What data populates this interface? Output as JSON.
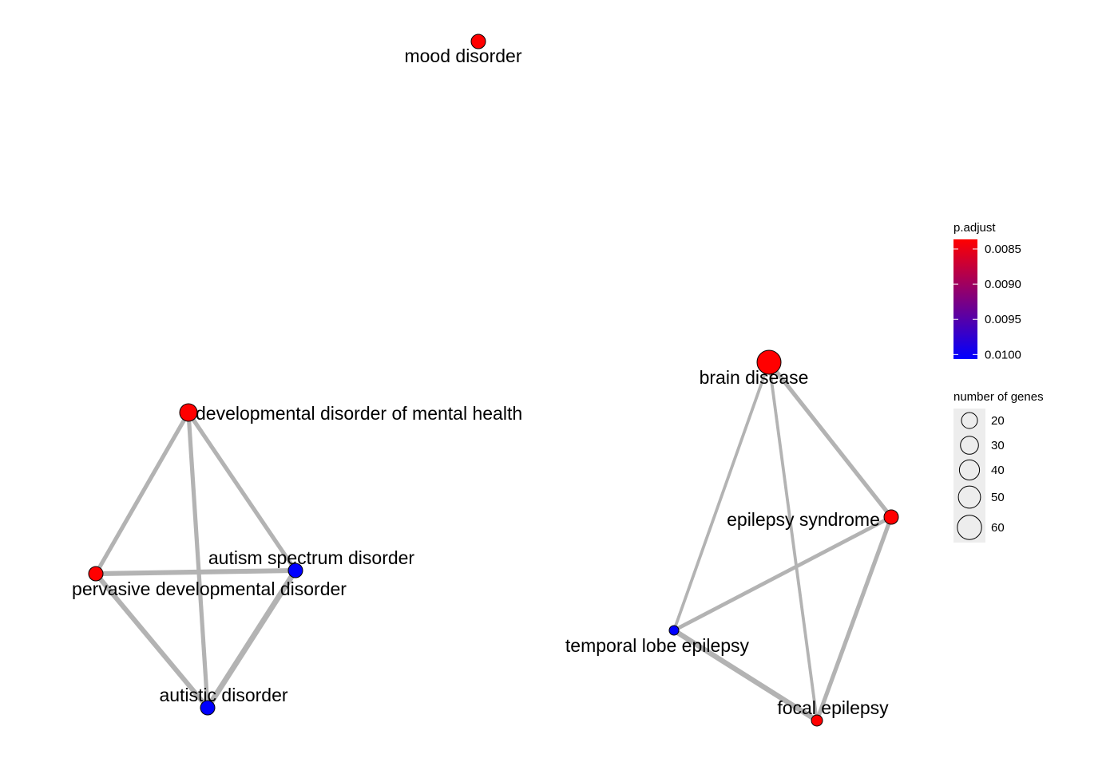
{
  "network": {
    "nodes": [
      {
        "id": "mood",
        "label": "mood disorder",
        "p_adjust": 0.0085,
        "genes": 30
      },
      {
        "id": "dev",
        "label": "developmental disorder of mental health",
        "p_adjust": 0.0085,
        "genes": 40
      },
      {
        "id": "asd",
        "label": "autism spectrum disorder",
        "p_adjust": 0.0102,
        "genes": 30
      },
      {
        "id": "pdd",
        "label": "pervasive developmental disorder",
        "p_adjust": 0.0085,
        "genes": 30
      },
      {
        "id": "aut",
        "label": "autistic disorder",
        "p_adjust": 0.0102,
        "genes": 30
      },
      {
        "id": "brain",
        "label": "brain disease",
        "p_adjust": 0.0085,
        "genes": 60
      },
      {
        "id": "eps",
        "label": "epilepsy syndrome",
        "p_adjust": 0.0085,
        "genes": 30
      },
      {
        "id": "tle",
        "label": "temporal lobe epilepsy",
        "p_adjust": 0.0102,
        "genes": 15
      },
      {
        "id": "fe",
        "label": "focal epilepsy",
        "p_adjust": 0.0085,
        "genes": 20
      }
    ],
    "edges": [
      {
        "source": "dev",
        "target": "pdd",
        "weight": 0.6
      },
      {
        "source": "dev",
        "target": "asd",
        "weight": 0.6
      },
      {
        "source": "dev",
        "target": "aut",
        "weight": 0.6
      },
      {
        "source": "pdd",
        "target": "asd",
        "weight": 0.8
      },
      {
        "source": "pdd",
        "target": "aut",
        "weight": 0.8
      },
      {
        "source": "asd",
        "target": "aut",
        "weight": 1.0
      },
      {
        "source": "brain",
        "target": "eps",
        "weight": 0.6
      },
      {
        "source": "brain",
        "target": "tle",
        "weight": 0.3
      },
      {
        "source": "brain",
        "target": "fe",
        "weight": 0.3
      },
      {
        "source": "eps",
        "target": "tle",
        "weight": 0.5
      },
      {
        "source": "eps",
        "target": "fe",
        "weight": 0.6
      },
      {
        "source": "tle",
        "target": "fe",
        "weight": 0.9
      }
    ]
  },
  "legend": {
    "color": {
      "title": "p.adjust",
      "ticks": [
        {
          "label": "0.0085",
          "value": 0.0085
        },
        {
          "label": "0.0090",
          "value": 0.009
        },
        {
          "label": "0.0095",
          "value": 0.0095
        },
        {
          "label": "0.0100",
          "value": 0.01
        }
      ],
      "min_color": "#ff0000",
      "max_color": "#0000ff"
    },
    "size": {
      "title": "number of genes",
      "items": [
        {
          "label": "20",
          "value": 20
        },
        {
          "label": "30",
          "value": 30
        },
        {
          "label": "40",
          "value": 40
        },
        {
          "label": "50",
          "value": 50
        },
        {
          "label": "60",
          "value": 60
        }
      ]
    }
  },
  "colors": {
    "edge": "#b3b3b3",
    "node_stroke": "#000000",
    "size_key_bg": "#ededed"
  }
}
